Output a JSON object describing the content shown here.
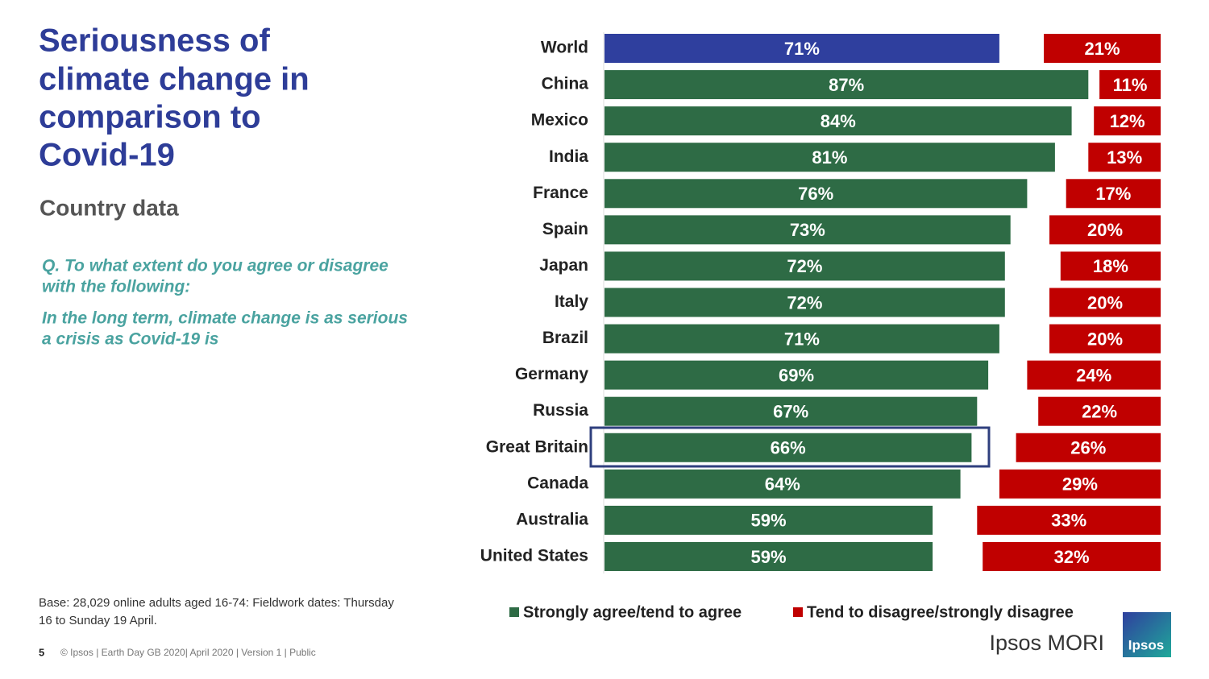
{
  "slide": {
    "title_lines": [
      "Seriousness of",
      "climate change in",
      "comparison to",
      "Covid-19"
    ],
    "subtitle": "Country data",
    "question_lines": [
      "Q. To what extent do you agree or disagree",
      "with the following:"
    ],
    "statement_lines": [
      "In the long term, climate change is as serious",
      "a crisis as Covid-19 is"
    ],
    "base_lines": [
      "Base: 28,029 online adults aged 16-74: Fieldwork dates: Thursday",
      "16 to Sunday 19 April."
    ],
    "page_number": "5",
    "copyright": "© Ipsos | Earth Day GB 2020| April 2020 | Version 1 | Public",
    "brand": "Ipsos MORI",
    "logo_text": "Ipsos"
  },
  "chart_data": {
    "type": "diverging-bar",
    "categories": [
      "World",
      "China",
      "Mexico",
      "India",
      "France",
      "Spain",
      "Japan",
      "Italy",
      "Brazil",
      "Germany",
      "Russia",
      "Great Britain",
      "Canada",
      "Australia",
      "United States"
    ],
    "series": [
      {
        "name": "Strongly agree/tend to agree",
        "color": "#2e6b45",
        "colors": [
          "#2f3f9e",
          "#2e6b45",
          "#2e6b45",
          "#2e6b45",
          "#2e6b45",
          "#2e6b45",
          "#2e6b45",
          "#2e6b45",
          "#2e6b45",
          "#2e6b45",
          "#2e6b45",
          "#2e6b45",
          "#2e6b45",
          "#2e6b45",
          "#2e6b45"
        ],
        "values": [
          71,
          87,
          84,
          81,
          76,
          73,
          72,
          72,
          71,
          69,
          67,
          66,
          64,
          59,
          59
        ],
        "value_labels": [
          "71%",
          "87%",
          "84%",
          "81%",
          "76%",
          "73%",
          "72%",
          "72%",
          "71%",
          "69%",
          "67%",
          "66%",
          "64%",
          "59%",
          "59%"
        ]
      },
      {
        "name": "Tend to disagree/strongly disagree",
        "color": "#c00000",
        "values": [
          21,
          11,
          12,
          13,
          17,
          20,
          18,
          20,
          20,
          24,
          22,
          26,
          29,
          33,
          32
        ],
        "value_labels": [
          "21%",
          "11%",
          "12%",
          "13%",
          "17%",
          "20%",
          "18%",
          "20%",
          "20%",
          "24%",
          "22%",
          "26%",
          "29%",
          "33%",
          "32%"
        ]
      }
    ]
  }
}
